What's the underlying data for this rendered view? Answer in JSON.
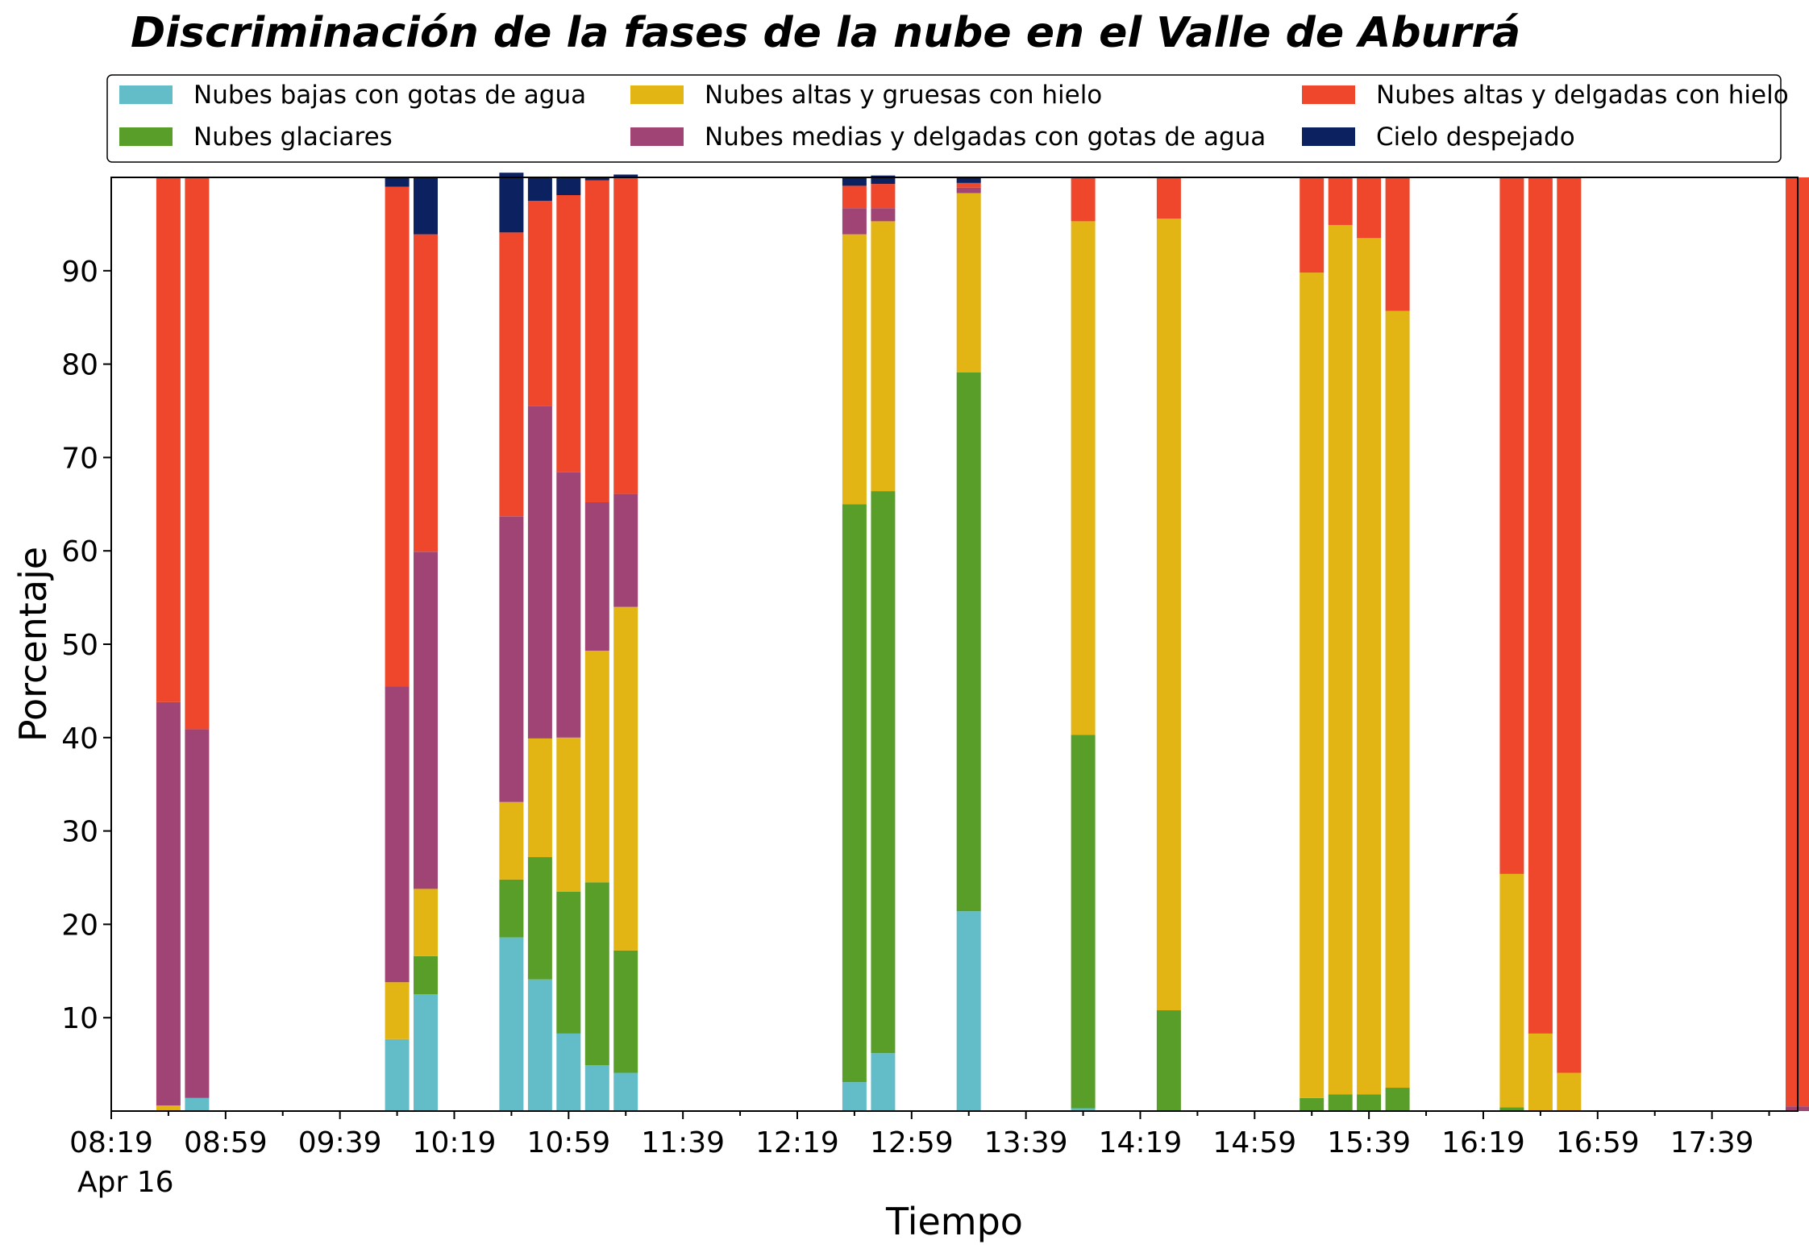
{
  "chart_data": {
    "type": "bar",
    "stacked": true,
    "title": "Discriminación de la fases de la nube en el Valle de Aburrá",
    "xlabel": "Tiempo",
    "ylabel": "Porcentaje",
    "ylim": [
      0,
      100
    ],
    "yticks": [
      10,
      20,
      30,
      40,
      50,
      60,
      70,
      80,
      90
    ],
    "xticks": [
      "08:19",
      "08:59",
      "09:39",
      "10:19",
      "10:59",
      "11:39",
      "12:19",
      "12:59",
      "13:39",
      "14:19",
      "14:59",
      "15:39",
      "16:19",
      "16:59",
      "17:39"
    ],
    "x_date_label": "Apr 16",
    "x_range": [
      "08:19",
      "18:09"
    ],
    "grid": false,
    "legend_position": "top",
    "x": [
      "08:39",
      "08:49",
      "09:59",
      "10:09",
      "10:39",
      "10:49",
      "10:59",
      "11:09",
      "11:19",
      "12:39",
      "12:49",
      "13:19",
      "13:59",
      "14:29",
      "15:19",
      "15:29",
      "15:39",
      "15:49",
      "16:29",
      "16:39",
      "16:49",
      "18:09"
    ],
    "series": [
      {
        "name": "Nubes bajas con gotas de agua",
        "color": "#63bdc9",
        "values": [
          0,
          1.4,
          7.7,
          12.5,
          18.6,
          14.1,
          8.3,
          4.9,
          4.1,
          3.1,
          6.2,
          21.4,
          0.3,
          0,
          0,
          0,
          0,
          0,
          0,
          0,
          0,
          0
        ]
      },
      {
        "name": "Nubes glaciares",
        "color": "#5a9e2a",
        "values": [
          0,
          0,
          0,
          4.1,
          6.2,
          13.1,
          15.2,
          19.6,
          13.1,
          61.9,
          60.2,
          57.7,
          40.0,
          10.8,
          1.4,
          1.8,
          1.8,
          2.5,
          0.4,
          0,
          0,
          0
        ]
      },
      {
        "name": "Nubes altas y gruesas con hielo",
        "color": "#e2b414",
        "values": [
          0.6,
          0,
          6.1,
          7.2,
          8.3,
          12.7,
          16.5,
          24.8,
          36.8,
          28.9,
          28.9,
          19.2,
          55.0,
          84.8,
          88.4,
          93.1,
          91.7,
          83.2,
          25.0,
          8.3,
          4.1,
          0
        ]
      },
      {
        "name": "Nubes medias y delgadas con gotas de agua",
        "color": "#a04476",
        "values": [
          43.2,
          39.5,
          31.7,
          36.1,
          30.6,
          35.6,
          28.4,
          15.9,
          12.1,
          2.8,
          1.4,
          0.6,
          0,
          0,
          0,
          0,
          0,
          0,
          0,
          0,
          0,
          0.5
        ]
      },
      {
        "name": "Nubes altas y delgadas con hielo",
        "color": "#ee472c",
        "values": [
          56.2,
          59.1,
          53.5,
          34.0,
          30.4,
          22.0,
          29.7,
          34.5,
          33.9,
          2.4,
          2.6,
          0.5,
          4.7,
          4.4,
          10.2,
          5.1,
          6.5,
          14.3,
          74.6,
          91.7,
          95.9,
          99.5
        ]
      },
      {
        "name": "Cielo despejado",
        "color": "#0b2160",
        "values": [
          0,
          0,
          1.0,
          6.1,
          6.4,
          2.5,
          1.9,
          0.3,
          0.3,
          0.9,
          0.9,
          0.6,
          0,
          0,
          0,
          0,
          0,
          0,
          0,
          0,
          0,
          0
        ]
      }
    ],
    "legend_order": [
      "Nubes bajas con gotas de agua",
      "Nubes altas y gruesas con hielo",
      "Nubes altas y delgadas con hielo",
      "Nubes glaciares",
      "Nubes medias y delgadas con gotas de agua",
      "Cielo despejado"
    ]
  }
}
